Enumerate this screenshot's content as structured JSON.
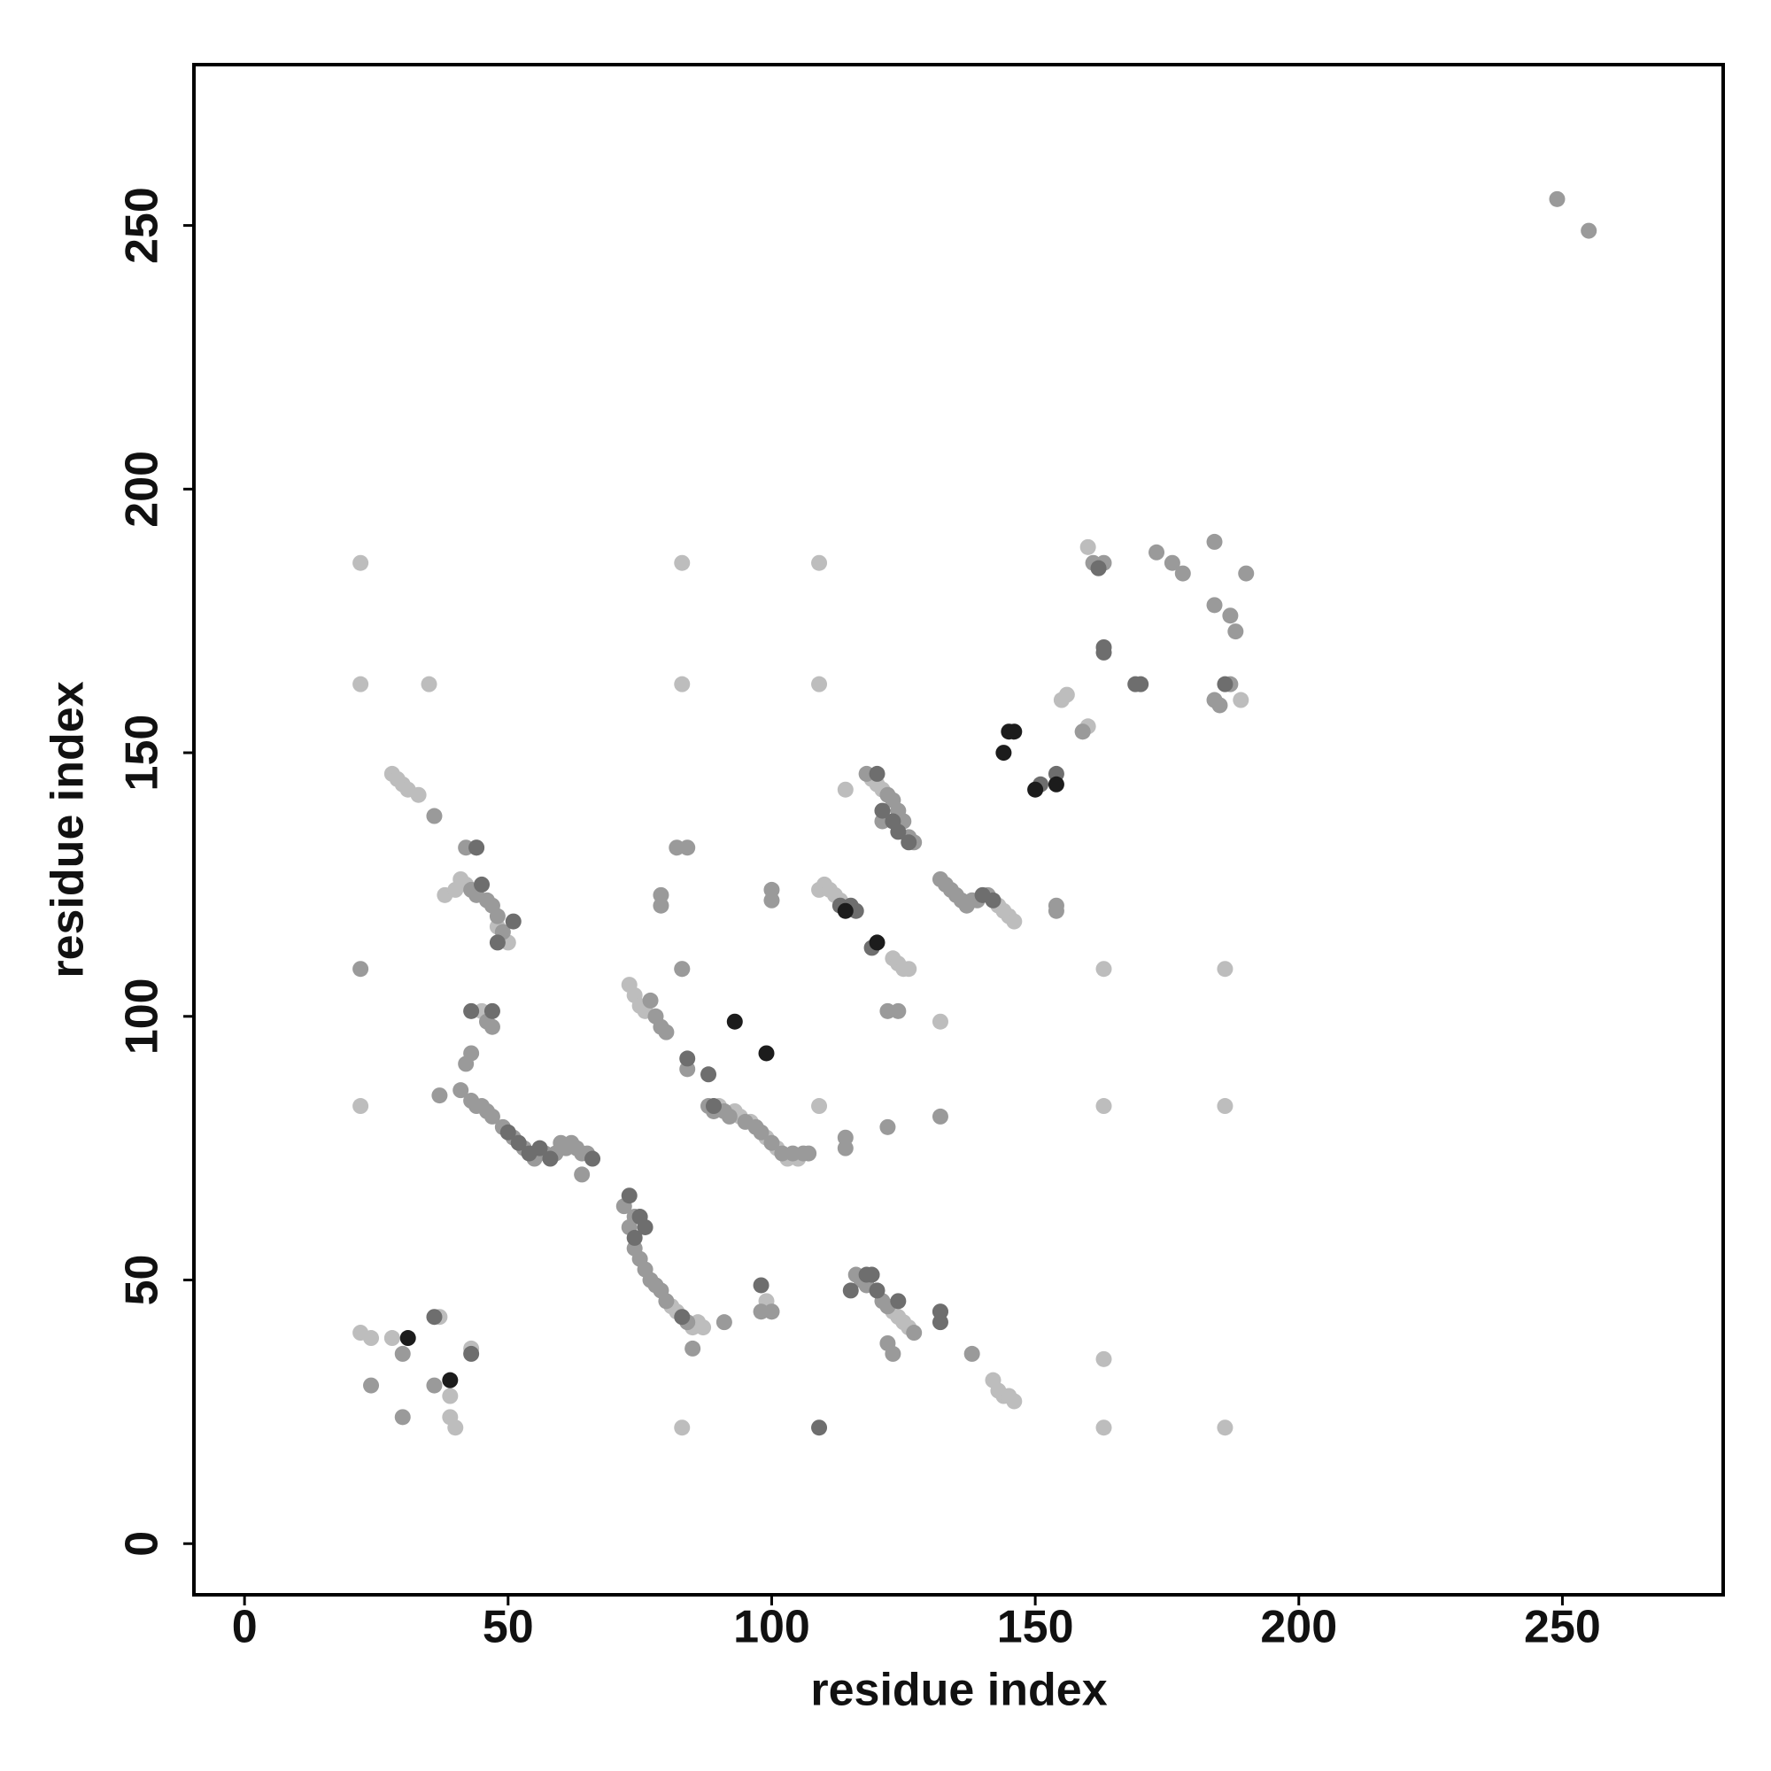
{
  "chart_data": {
    "type": "scatter",
    "x_label": "residue index",
    "y_label": "residue index",
    "xlim": [
      -9.6,
      280.5
    ],
    "ylim": [
      -9.7,
      280.5
    ],
    "xticks": [
      0,
      50,
      100,
      150,
      200,
      250
    ],
    "yticks": [
      0,
      50,
      100,
      150,
      200,
      250
    ],
    "series": [
      {
        "color": "#bdbdbd",
        "x": [
          22,
          83,
          109,
          22,
          35,
          83,
          109,
          83,
          163,
          186,
          22,
          109,
          163,
          186,
          83,
          163,
          186,
          163,
          22,
          24,
          28,
          37,
          43,
          39,
          39,
          40,
          28,
          29,
          30,
          31,
          33,
          38,
          40,
          41,
          42,
          45,
          48,
          50,
          73,
          74,
          75,
          76,
          81,
          82,
          83,
          85,
          86,
          87,
          90,
          93,
          94,
          96,
          99,
          101,
          103,
          105,
          99,
          100,
          109,
          110,
          111,
          112,
          113,
          123,
          124,
          125,
          126,
          119,
          120,
          121,
          114,
          132,
          143,
          144,
          145,
          146,
          123,
          124,
          125,
          126,
          142,
          143,
          144,
          145,
          146,
          160,
          155,
          156,
          159,
          160,
          189
        ],
        "y": [
          186,
          186,
          186,
          163,
          163,
          163,
          163,
          109,
          109,
          109,
          83,
          83,
          83,
          83,
          22,
          22,
          22,
          35,
          40,
          39,
          39,
          43,
          37,
          28,
          24,
          22,
          146,
          145,
          144,
          143,
          142,
          123,
          124,
          126,
          125,
          101,
          117,
          114,
          106,
          104,
          102,
          101,
          45,
          44,
          43,
          41,
          42,
          41,
          83,
          82,
          81,
          80,
          77,
          75,
          73,
          73,
          46,
          44,
          124,
          125,
          124,
          123,
          122,
          111,
          110,
          109,
          109,
          145,
          144,
          143,
          143,
          99,
          121,
          120,
          119,
          118,
          44,
          43,
          42,
          41,
          31,
          29,
          28,
          28,
          27,
          189,
          160,
          161,
          154,
          155,
          160
        ]
      },
      {
        "color": "#9a9a9a",
        "x": [
          249,
          255,
          22,
          30,
          24,
          30,
          36,
          37,
          41,
          43,
          44,
          45,
          46,
          47,
          49,
          51,
          53,
          55,
          57,
          59,
          60,
          61,
          62,
          63,
          64,
          65,
          64,
          72,
          73,
          74,
          75,
          76,
          77,
          78,
          79,
          80,
          84,
          85,
          91,
          98,
          100,
          74,
          77,
          78,
          79,
          80,
          84,
          79,
          79,
          88,
          89,
          91,
          92,
          95,
          97,
          98,
          100,
          102,
          104,
          106,
          107,
          114,
          122,
          43,
          44,
          46,
          47,
          48,
          49,
          36,
          44,
          42,
          43,
          46,
          47,
          42,
          82,
          84,
          100,
          100,
          83,
          122,
          124,
          118,
          121,
          122,
          123,
          124,
          125,
          126,
          127,
          114,
          132,
          133,
          134,
          135,
          136,
          137,
          138,
          139,
          141,
          154,
          154,
          116,
          117,
          118,
          121,
          122,
          127,
          122,
          123,
          132,
          138,
          132,
          159,
          161,
          162,
          163,
          173,
          176,
          178,
          184,
          184,
          187,
          188,
          190,
          184,
          185,
          187
        ],
        "y": [
          255,
          249,
          109,
          36,
          30,
          24,
          30,
          85,
          86,
          84,
          83,
          83,
          82,
          81,
          79,
          77,
          75,
          73,
          74,
          74,
          76,
          75,
          76,
          75,
          74,
          74,
          70,
          64,
          60,
          62,
          54,
          52,
          50,
          49,
          48,
          46,
          42,
          37,
          42,
          44,
          44,
          56,
          103,
          100,
          98,
          97,
          90,
          123,
          121,
          83,
          82,
          82,
          81,
          80,
          79,
          78,
          76,
          74,
          74,
          74,
          74,
          77,
          79,
          124,
          123,
          122,
          121,
          119,
          116,
          138,
          132,
          91,
          93,
          99,
          98,
          132,
          132,
          132,
          124,
          122,
          109,
          101,
          101,
          146,
          137,
          142,
          141,
          139,
          137,
          134,
          133,
          75,
          126,
          125,
          124,
          123,
          122,
          121,
          122,
          122,
          123,
          121,
          120,
          51,
          50,
          49,
          46,
          45,
          40,
          38,
          36,
          44,
          36,
          81,
          154,
          186,
          185,
          186,
          188,
          186,
          184,
          190,
          178,
          176,
          173,
          184,
          160,
          159,
          163
        ]
      },
      {
        "color": "#6e6e6e",
        "x": [
          109,
          36,
          43,
          50,
          52,
          54,
          56,
          58,
          66,
          73,
          74,
          75,
          76,
          83,
          98,
          84,
          88,
          89,
          44,
          45,
          48,
          51,
          47,
          43,
          113,
          115,
          116,
          119,
          120,
          121,
          123,
          124,
          126,
          132,
          132,
          140,
          142,
          115,
          118,
          119,
          120,
          124,
          151,
          154,
          163,
          163,
          169,
          170,
          186,
          162
        ],
        "y": [
          22,
          43,
          36,
          78,
          76,
          74,
          75,
          73,
          73,
          66,
          58,
          62,
          60,
          43,
          49,
          92,
          89,
          83,
          132,
          125,
          114,
          118,
          101,
          101,
          121,
          121,
          120,
          113,
          146,
          139,
          137,
          135,
          133,
          44,
          42,
          123,
          122,
          48,
          51,
          51,
          48,
          46,
          144,
          146,
          170,
          169,
          163,
          163,
          163,
          185
        ]
      },
      {
        "color": "#1c1c1c",
        "x": [
          31,
          39,
          93,
          99,
          114,
          120,
          144,
          145,
          146,
          150,
          154
        ],
        "y": [
          39,
          31,
          99,
          93,
          120,
          114,
          150,
          154,
          154,
          143,
          144
        ]
      }
    ]
  }
}
